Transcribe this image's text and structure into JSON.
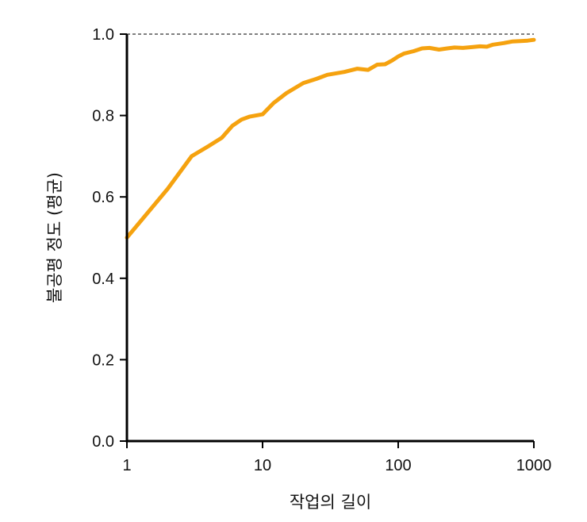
{
  "chart_data": {
    "type": "line",
    "title": "",
    "xlabel": "작업의 길이",
    "ylabel": "불공평 정도 (평균)",
    "x_scale": "log",
    "xlim": [
      1,
      1000
    ],
    "ylim": [
      0.0,
      1.0
    ],
    "x_ticks": [
      1,
      10,
      100,
      1000
    ],
    "x_tick_labels": [
      "1",
      "10",
      "100",
      "1000"
    ],
    "y_ticks": [
      0.0,
      0.2,
      0.4,
      0.6,
      0.8,
      1.0
    ],
    "y_tick_labels": [
      "0.0",
      "0.2",
      "0.4",
      "0.6",
      "0.8",
      "1.0"
    ],
    "grid": false,
    "reference_line": {
      "y": 1.0,
      "style": "dashed"
    },
    "colors": {
      "series": "#f5a20f",
      "axis": "#000000",
      "reference": "#333333"
    },
    "series": [
      {
        "x": [
          1,
          2,
          3,
          4,
          5,
          6,
          7,
          8,
          10,
          12,
          15,
          20,
          25,
          30,
          40,
          50,
          60,
          70,
          80,
          90,
          100,
          110,
          130,
          150,
          170,
          200,
          230,
          260,
          300,
          350,
          400,
          450,
          500,
          600,
          700,
          800,
          900,
          1000
        ],
        "y": [
          0.5,
          0.62,
          0.7,
          0.725,
          0.745,
          0.775,
          0.79,
          0.797,
          0.803,
          0.83,
          0.855,
          0.88,
          0.89,
          0.9,
          0.907,
          0.915,
          0.912,
          0.925,
          0.926,
          0.935,
          0.945,
          0.952,
          0.958,
          0.965,
          0.966,
          0.962,
          0.965,
          0.967,
          0.966,
          0.968,
          0.97,
          0.969,
          0.974,
          0.978,
          0.982,
          0.983,
          0.984,
          0.986
        ]
      }
    ]
  }
}
